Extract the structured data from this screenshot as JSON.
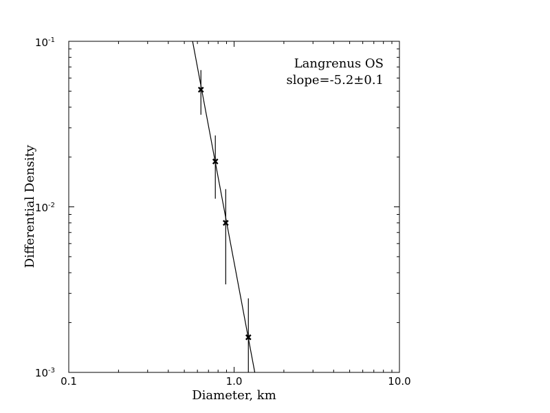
{
  "chart_data": {
    "type": "scatter",
    "xlabel": "Diameter, km",
    "ylabel": "Differential Density",
    "x_scale": "log",
    "y_scale": "log",
    "xlim": [
      0.1,
      10.0
    ],
    "ylim": [
      0.001,
      0.1
    ],
    "x_ticks": [
      {
        "value": 0.1,
        "label": "0.1"
      },
      {
        "value": 1.0,
        "label": "1.0"
      },
      {
        "value": 10.0,
        "label": "10.0"
      }
    ],
    "y_ticks": [
      {
        "value": 0.001,
        "base": "10",
        "exp": "-3"
      },
      {
        "value": 0.01,
        "base": "10",
        "exp": "-2"
      },
      {
        "value": 0.1,
        "base": "10",
        "exp": "-1"
      }
    ],
    "annotations": [
      "Langrenus OS",
      "slope=-5.2±0.1"
    ],
    "points": [
      {
        "x": 0.63,
        "y": 0.051,
        "y_low": 0.036,
        "y_high": 0.067
      },
      {
        "x": 0.77,
        "y": 0.0188,
        "y_low": 0.0112,
        "y_high": 0.027
      },
      {
        "x": 0.89,
        "y": 0.008,
        "y_low": 0.0034,
        "y_high": 0.0128
      },
      {
        "x": 1.22,
        "y": 0.00163,
        "y_low": 0.0009,
        "y_high": 0.0028
      }
    ],
    "fit_line": {
      "slope": -5.2,
      "x": [
        0.561,
        1.334
      ],
      "y": [
        0.1,
        0.001
      ]
    },
    "grid": false,
    "legend": "none"
  }
}
